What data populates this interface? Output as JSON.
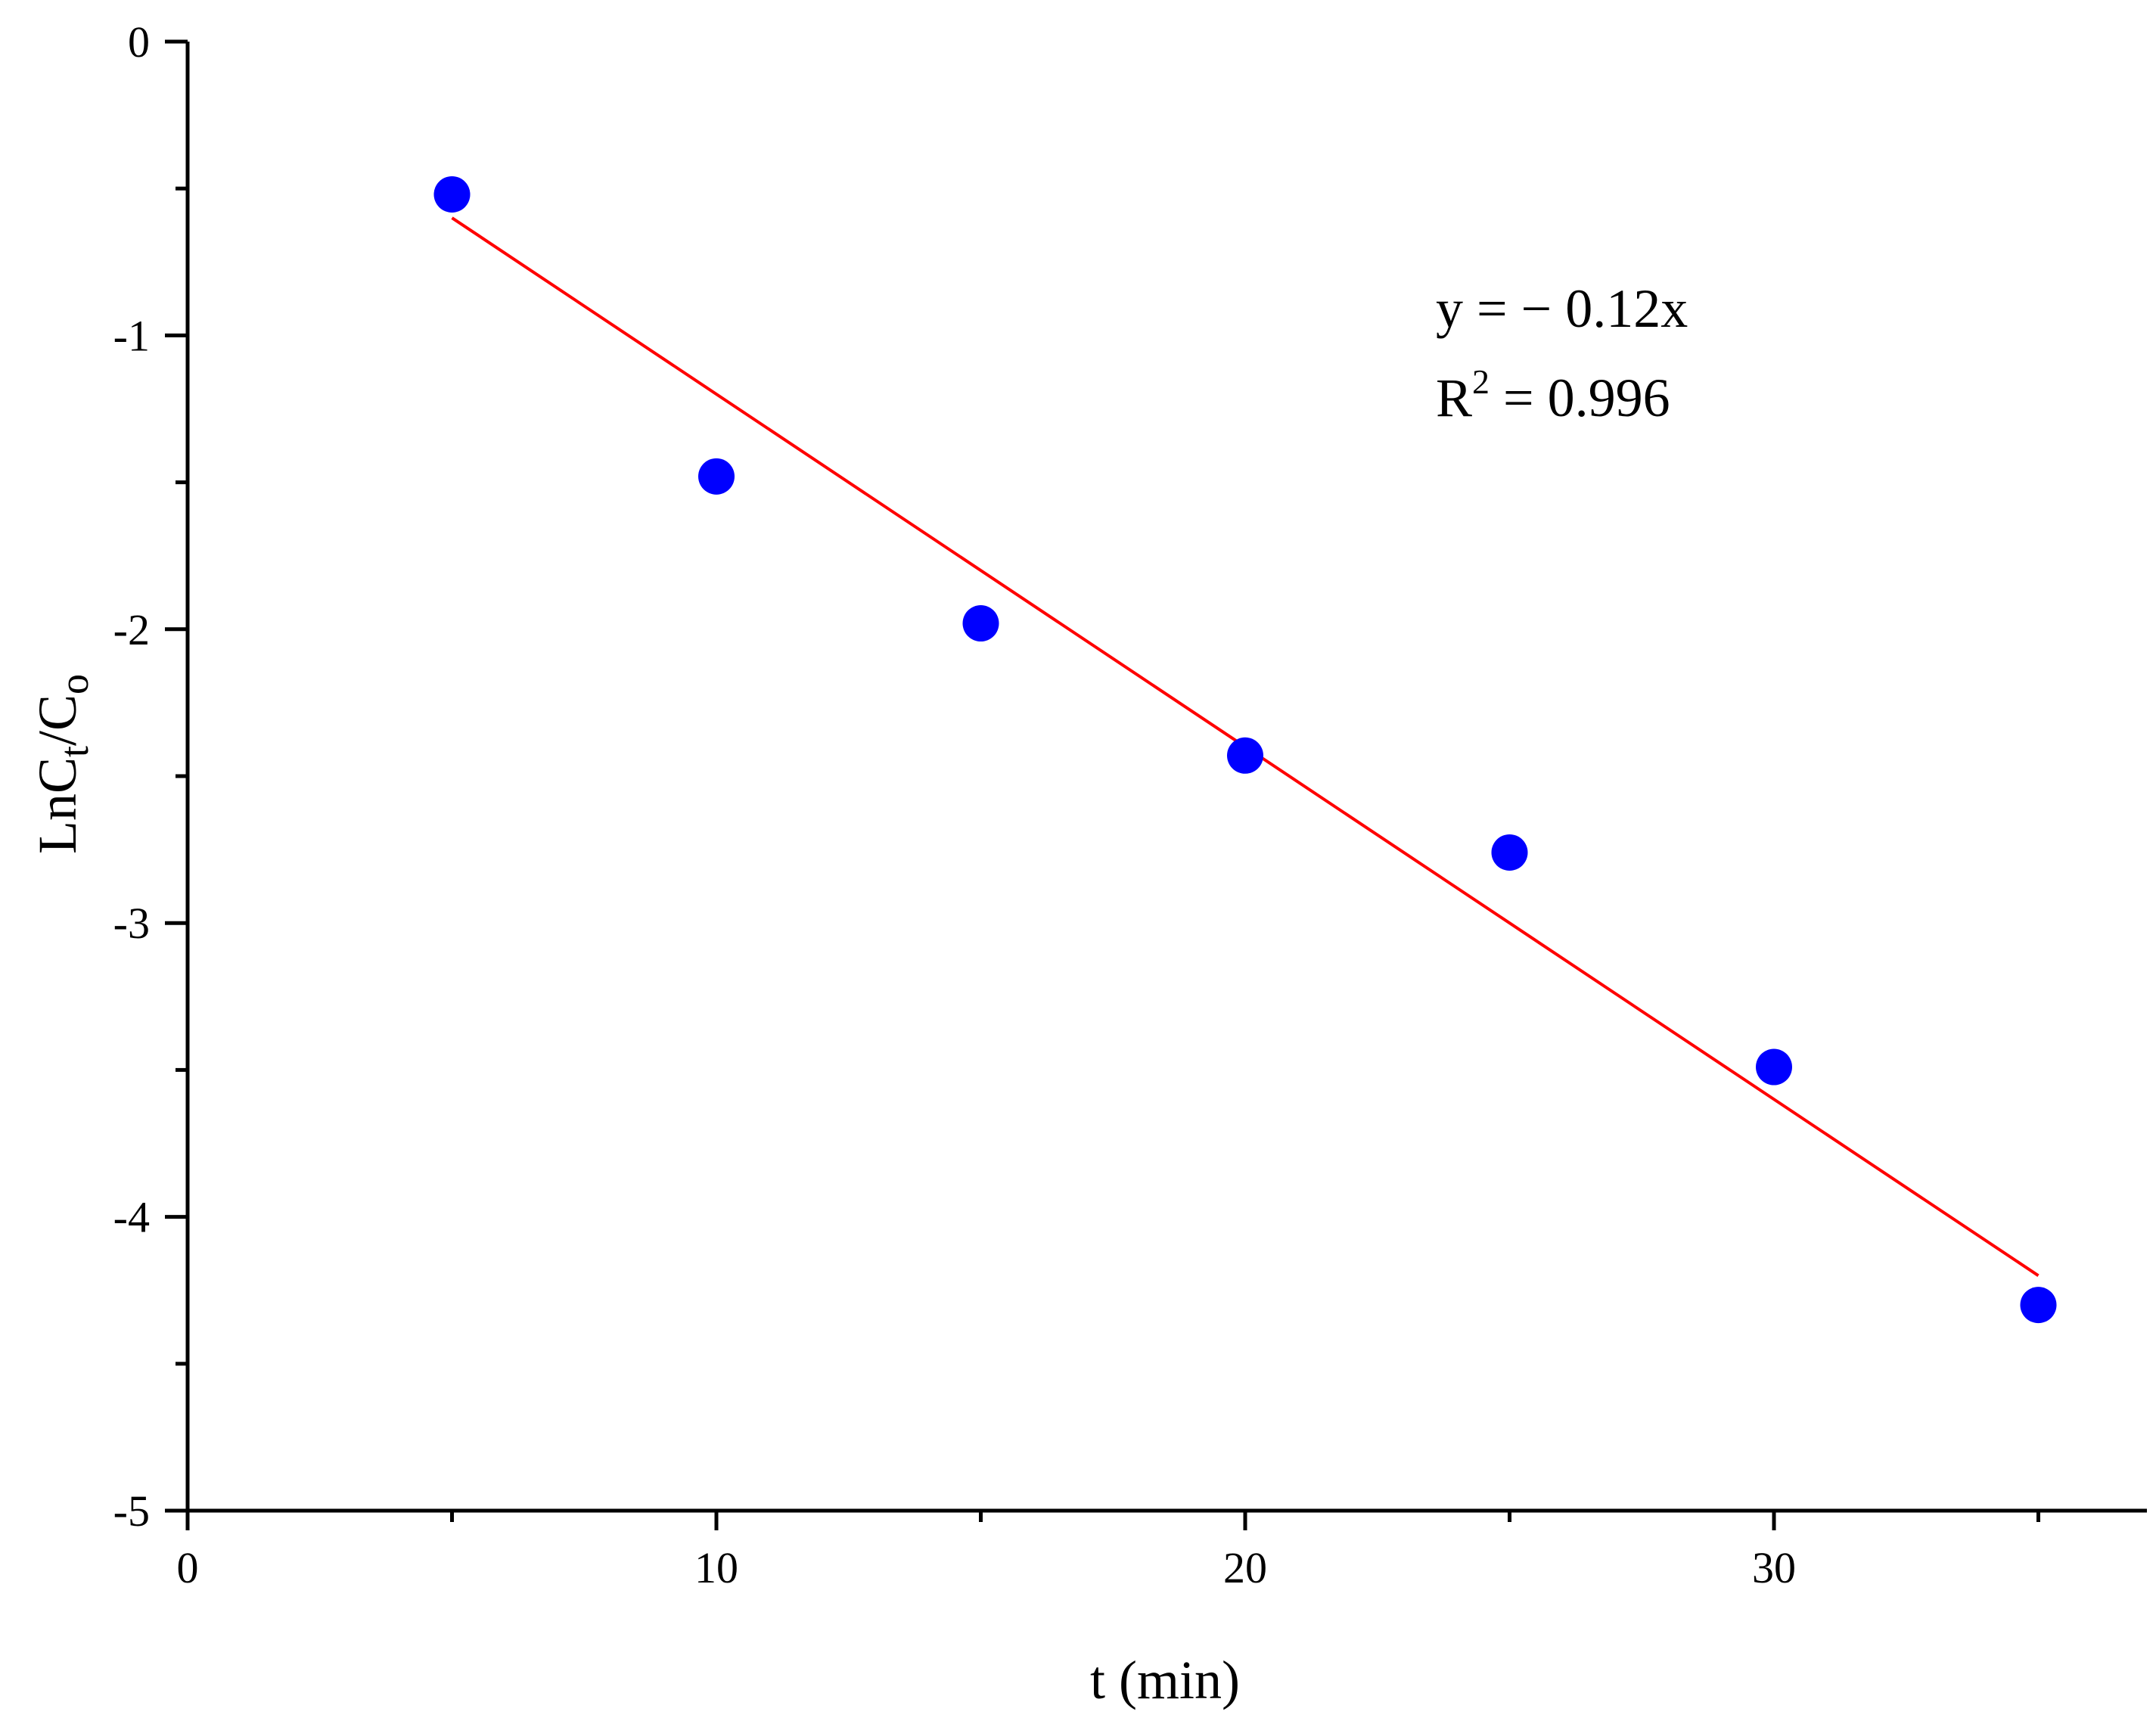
{
  "chart_data": {
    "type": "scatter",
    "title": "",
    "xlabel": "t (min)",
    "ylabel": {
      "base": "LnC",
      "sub1": "t",
      "sep": "/C",
      "sub2": "o"
    },
    "xlim": [
      0,
      37
    ],
    "ylim": [
      -5,
      0
    ],
    "x_ticks": [
      0,
      10,
      20,
      30
    ],
    "x_tick_labels": [
      "0",
      "10",
      "20",
      "30"
    ],
    "x_minor_ticks": [
      5,
      15,
      25,
      35
    ],
    "y_ticks": [
      0,
      -1,
      -2,
      -3,
      -4,
      -5
    ],
    "y_tick_labels": [
      "0",
      "-1",
      "-2",
      "-3",
      "-4",
      "-5"
    ],
    "y_minor_ticks": [
      -0.5,
      -1.5,
      -2.5,
      -3.5,
      -4.5
    ],
    "grid": false,
    "series": [
      {
        "kind": "points",
        "color": "#0000ff",
        "x": [
          5,
          10,
          15,
          20,
          25,
          30,
          35
        ],
        "y": [
          -0.52,
          -1.48,
          -1.98,
          -2.43,
          -2.76,
          -3.49,
          -4.3
        ]
      },
      {
        "kind": "fit-line",
        "color": "#ff0000",
        "slope": -0.12,
        "intercept": 0,
        "x_range": [
          5,
          35
        ]
      }
    ],
    "annotations": {
      "equation": "y = − 0.12x",
      "r2_base": "R",
      "r2_sup": "2",
      "r2_rest": " = 0.996"
    },
    "colors": {
      "points": "#0000ff",
      "fit_line": "#ff0000",
      "axes": "#000000"
    }
  }
}
